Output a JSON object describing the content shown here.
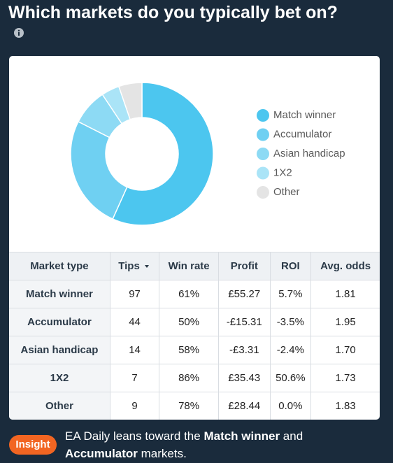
{
  "title": "Which markets do you typically bet on?",
  "chart_data": {
    "type": "pie",
    "donut": true,
    "categories": [
      "Match winner",
      "Accumulator",
      "Asian handicap",
      "1X2",
      "Other"
    ],
    "values": [
      97,
      44,
      14,
      7,
      9
    ],
    "colors": [
      "#4cc6ef",
      "#6fd0f2",
      "#8ddaf4",
      "#aae4f7",
      "#e4e4e4"
    ],
    "legend": "right"
  },
  "table": {
    "columns": [
      "Market type",
      "Tips",
      "Win rate",
      "Profit",
      "ROI",
      "Avg. odds"
    ],
    "rows": [
      [
        "Match winner",
        "97",
        "61%",
        "£55.27",
        "5.7%",
        "1.81"
      ],
      [
        "Accumulator",
        "44",
        "50%",
        "-£15.31",
        "-3.5%",
        "1.95"
      ],
      [
        "Asian handicap",
        "14",
        "58%",
        "-£3.31",
        "-2.4%",
        "1.70"
      ],
      [
        "1X2",
        "7",
        "86%",
        "£35.43",
        "50.6%",
        "1.73"
      ],
      [
        "Other",
        "9",
        "78%",
        "£28.44",
        "0.0%",
        "1.83"
      ]
    ]
  },
  "insight": {
    "badge": "Insight",
    "parts": [
      "EA Daily leans toward the ",
      "Match winner",
      " and ",
      "Accumulator",
      " markets."
    ]
  }
}
